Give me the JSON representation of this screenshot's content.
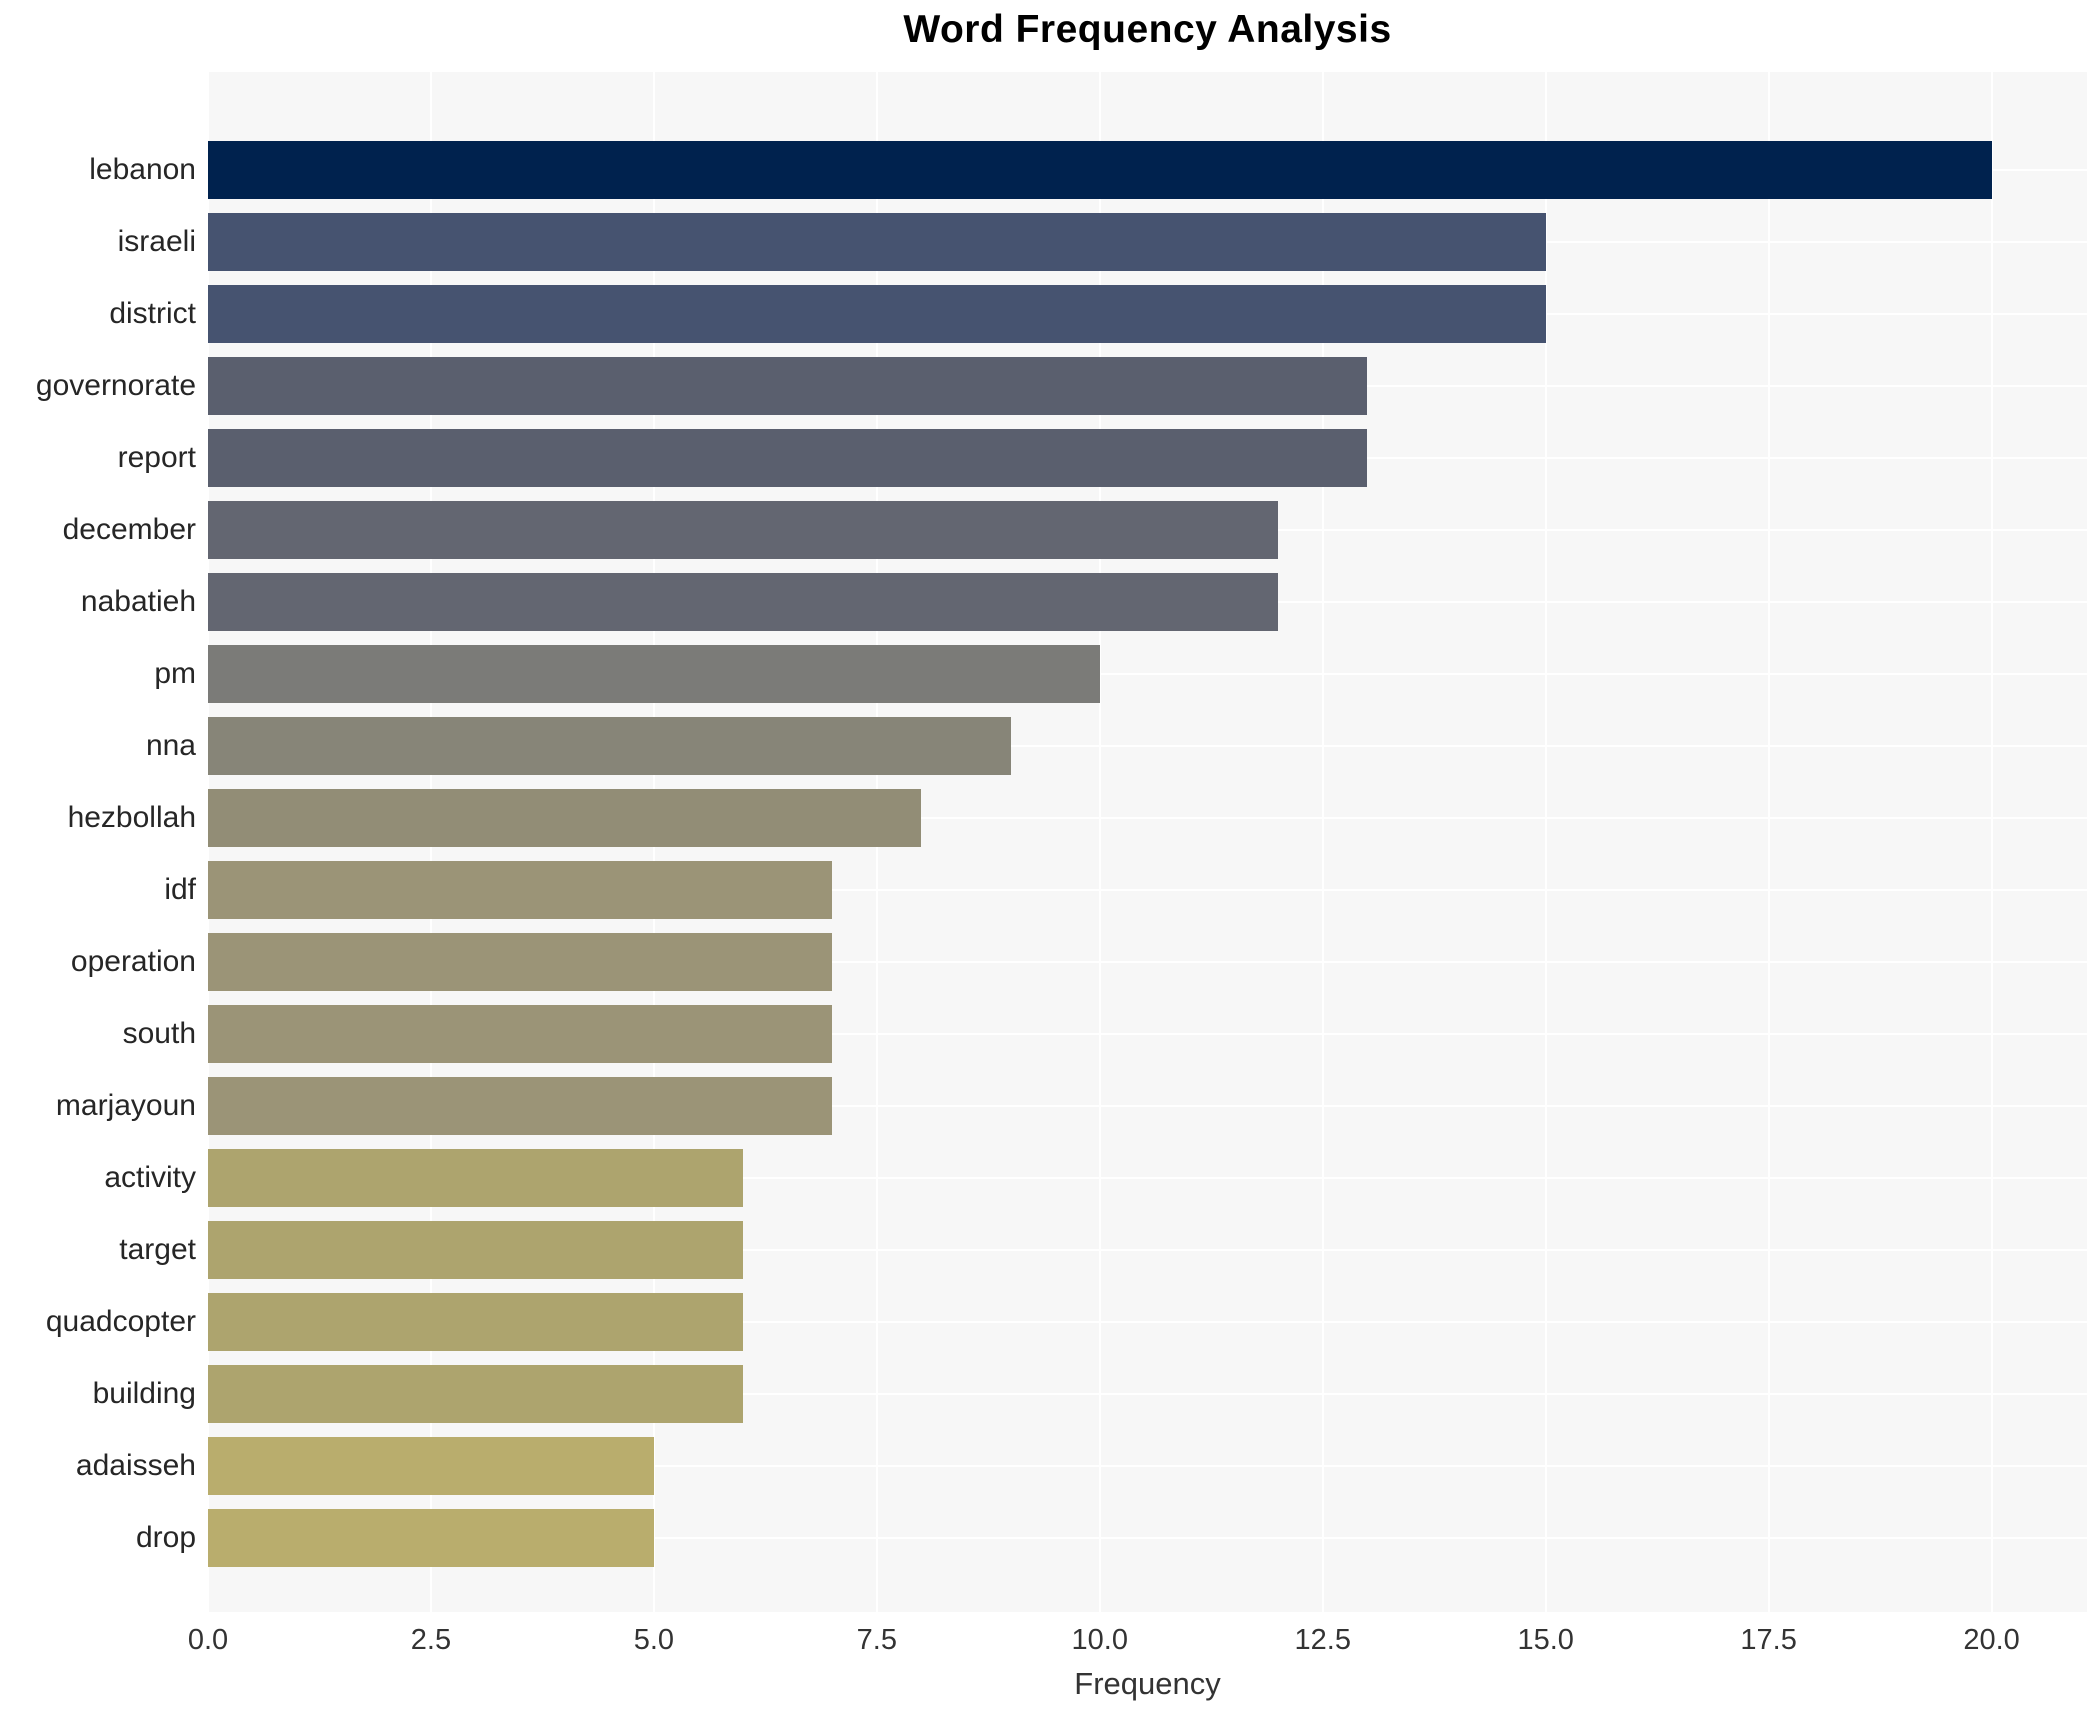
{
  "figure": {
    "title": "Word Frequency Analysis",
    "xlabel": "Frequency"
  },
  "chart_data": {
    "type": "bar",
    "orientation": "horizontal",
    "title": "Word Frequency Analysis",
    "xlabel": "Frequency",
    "ylabel": "",
    "categories": [
      "lebanon",
      "israeli",
      "district",
      "governorate",
      "report",
      "december",
      "nabatieh",
      "pm",
      "nna",
      "hezbollah",
      "idf",
      "operation",
      "south",
      "marjayoun",
      "activity",
      "target",
      "quadcopter",
      "building",
      "adaisseh",
      "drop"
    ],
    "values": [
      20,
      15,
      15,
      13,
      13,
      12,
      12,
      10,
      9,
      8,
      7,
      7,
      7,
      7,
      6,
      6,
      6,
      6,
      5,
      5
    ],
    "bar_colors": [
      "#00224e",
      "#465370",
      "#465370",
      "#5a5f6e",
      "#5a5f6e",
      "#636671",
      "#636671",
      "#7b7b78",
      "#878578",
      "#928d76",
      "#9b9477",
      "#9b9477",
      "#9b9477",
      "#9b9477",
      "#ada46e",
      "#ada46e",
      "#ada46e",
      "#ada46e",
      "#b9ad6d",
      "#b9ad6d"
    ],
    "xticks": [
      0.0,
      2.5,
      5.0,
      7.5,
      10.0,
      12.5,
      15.0,
      17.5,
      20.0
    ],
    "xtick_labels": [
      "0.0",
      "2.5",
      "5.0",
      "7.5",
      "10.0",
      "12.5",
      "15.0",
      "17.5",
      "20.0"
    ],
    "xlim": [
      0,
      21.07
    ],
    "grid": true,
    "legend": false,
    "plot_bg_color": "#f7f7f7",
    "grid_color": "#ffffff",
    "tick_label_color": "#333333",
    "category_label_color": "#262626"
  }
}
